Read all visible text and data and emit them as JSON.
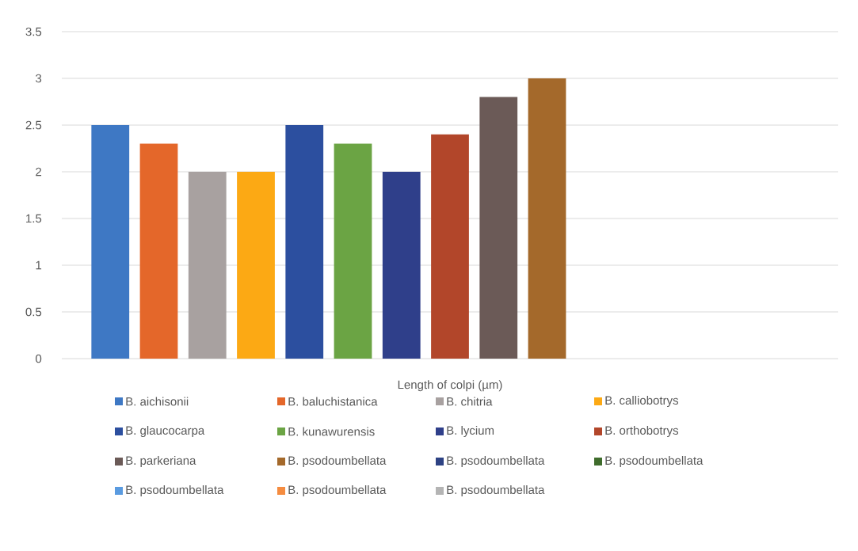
{
  "chart_data": {
    "type": "bar",
    "categories": [
      "Length of colpi (µm)"
    ],
    "series": [
      {
        "name": "B. aichisonii",
        "color": "#3e78c4",
        "values": [
          2.5
        ]
      },
      {
        "name": "B. baluchistanica",
        "color": "#e4672a",
        "values": [
          2.3
        ]
      },
      {
        "name": "B. chitria",
        "color": "#a8a1a0",
        "values": [
          2.0
        ]
      },
      {
        "name": "B. calliobotrys",
        "color": "#fca914",
        "values": [
          2.0
        ]
      },
      {
        "name": "B. glaucocarpa",
        "color": "#2c4f9f",
        "values": [
          2.5
        ]
      },
      {
        "name": "B. kunawurensis",
        "color": "#6ba444",
        "values": [
          2.3
        ]
      },
      {
        "name": "B. lycium",
        "color": "#2f3f8a",
        "values": [
          2.0
        ]
      },
      {
        "name": "B. orthobotrys",
        "color": "#b2462a",
        "values": [
          2.4
        ]
      },
      {
        "name": "B. parkeriana",
        "color": "#6b5a57",
        "values": [
          2.8
        ]
      },
      {
        "name": "B. psodoumbellata",
        "color": "#a4692b",
        "values": [
          3.0
        ]
      },
      {
        "name": "B. psodoumbellata",
        "color": "#2d4283",
        "values": [
          null
        ]
      },
      {
        "name": "B. psodoumbellata",
        "color": "#3f6c2c",
        "values": [
          null
        ]
      },
      {
        "name": "B. psodoumbellata",
        "color": "#5a9be0",
        "values": [
          null
        ]
      },
      {
        "name": "B. psodoumbellata",
        "color": "#f58c40",
        "values": [
          null
        ]
      },
      {
        "name": "B. psodoumbellata",
        "color": "#b4b4b4",
        "values": [
          null
        ]
      }
    ],
    "ylim": [
      0,
      3.5
    ],
    "yticks": [
      0,
      0.5,
      1,
      1.5,
      2,
      2.5,
      3,
      3.5
    ],
    "grid": "y",
    "legend": "bottom"
  }
}
